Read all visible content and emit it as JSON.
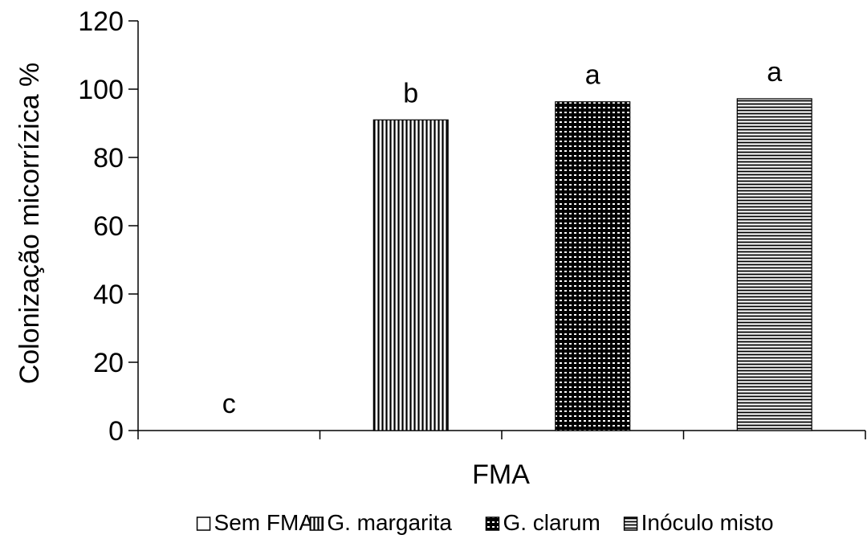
{
  "chart_data": {
    "type": "bar",
    "xlabel": "FMA",
    "ylabel": "Colonização micorrízica %",
    "ylim": [
      0,
      120
    ],
    "yticks": [
      0,
      20,
      40,
      60,
      80,
      100,
      120
    ],
    "grid": false,
    "legend_position": "bottom",
    "series": [
      {
        "name": "Sem FMA",
        "value": 0,
        "letter": "c",
        "pattern": "empty"
      },
      {
        "name": "G. margarita",
        "value": 91,
        "letter": "b",
        "pattern": "vertical-lines"
      },
      {
        "name": "G. clarum",
        "value": 96.3,
        "letter": "a",
        "pattern": "dotted-grid"
      },
      {
        "name": "Inóculo misto",
        "value": 97.2,
        "letter": "a",
        "pattern": "horizontal-lines"
      }
    ]
  }
}
